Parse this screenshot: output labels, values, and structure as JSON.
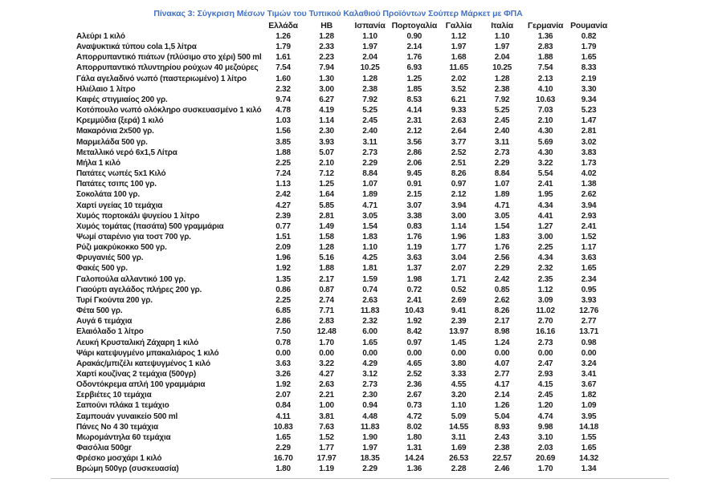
{
  "page": {
    "title": "Πίνακας 3: Σύγκριση Μέσων Τιμών του Τυπικού Καλαθιού Προϊόντων Σούπερ Μάρκετ με ΦΠΑ"
  },
  "colors": {
    "title_blue": "#4472c4",
    "text": "#1c1c1c",
    "rule_gray": "#c2c2c2"
  },
  "table": {
    "columns": [
      "Ελλάδα",
      "ΗΒ",
      "Ισπανία",
      "Πορτογαλία",
      "Γαλλία",
      "Ιταλία",
      "Γερμανία",
      "Ρουμανία"
    ],
    "rows": [
      {
        "label": "Αλεύρι 1 κιλό",
        "values": [
          "1.26",
          "1.28",
          "1.10",
          "0.90",
          "1.12",
          "1.10",
          "1.36",
          "0.82"
        ]
      },
      {
        "label": "Αναψυκτικά τύπου cola 1,5 λίτρα",
        "values": [
          "1.79",
          "2.33",
          "1.97",
          "2.14",
          "1.97",
          "1.97",
          "2.83",
          "1.79"
        ]
      },
      {
        "label": "Απορρυπαντικό πιάτων (πλύσιμο στο χέρι) 500 ml",
        "values": [
          "1.61",
          "2.23",
          "2.04",
          "1.76",
          "1.68",
          "2.04",
          "1.88",
          "1.65"
        ]
      },
      {
        "label": "Απορρυπαντικό πλυντηρίου ρούχων 40 μεζούρες",
        "values": [
          "7.54",
          "7.94",
          "10.25",
          "6.93",
          "11.65",
          "10.25",
          "7.54",
          "8.33"
        ]
      },
      {
        "label": "Γάλα αγελαδινό νωπό (παστεριωμένο) 1 λίτρο",
        "values": [
          "1.60",
          "1.30",
          "1.28",
          "1.25",
          "2.02",
          "1.28",
          "2.13",
          "2.19"
        ]
      },
      {
        "label": "Ηλιέλαιο 1 λίτρο",
        "values": [
          "2.32",
          "3.00",
          "2.38",
          "1.85",
          "3.52",
          "2.38",
          "4.10",
          "3.30"
        ]
      },
      {
        "label": "Καφές στιγμιαίος 200 γρ.",
        "values": [
          "9.74",
          "6.27",
          "7.92",
          "8.53",
          "6.21",
          "7.92",
          "10.63",
          "9.34"
        ]
      },
      {
        "label": "Κοτόπουλο νωπό ολόκληρο συσκευασμένο 1 κιλό",
        "values": [
          "4.78",
          "4.19",
          "5.25",
          "4.14",
          "9.33",
          "5.25",
          "7.03",
          "5.23"
        ]
      },
      {
        "label": "Κρεμμύδια (ξερά) 1 κιλό",
        "values": [
          "1.03",
          "1.14",
          "2.45",
          "2.31",
          "2.63",
          "2.45",
          "2.10",
          "1.47"
        ]
      },
      {
        "label": "Μακαρόνια 2x500 γρ.",
        "values": [
          "1.56",
          "2.30",
          "2.40",
          "2.12",
          "2.64",
          "2.40",
          "4.30",
          "2.81"
        ]
      },
      {
        "label": "Μαρμελάδα 500 γρ.",
        "values": [
          "3.85",
          "3.93",
          "3.11",
          "3.56",
          "3.77",
          "3.11",
          "5.69",
          "3.02"
        ]
      },
      {
        "label": "Μεταλλικό νερό 6x1,5 Λίτρα",
        "values": [
          "1.88",
          "5.07",
          "2.73",
          "2.86",
          "2.52",
          "2.73",
          "4.30",
          "3.83"
        ]
      },
      {
        "label": "Μήλα 1 κιλό",
        "values": [
          "2.25",
          "2.10",
          "2.29",
          "2.06",
          "2.51",
          "2.29",
          "3.22",
          "1.73"
        ]
      },
      {
        "label": "Πατάτες νωπές 5x1 Κιλό",
        "values": [
          "7.24",
          "7.12",
          "8.84",
          "9.45",
          "8.26",
          "8.84",
          "5.54",
          "4.02"
        ]
      },
      {
        "label": "Πατάτες τσιπς 100 γρ.",
        "values": [
          "1.13",
          "1.25",
          "1.07",
          "0.91",
          "0.97",
          "1.07",
          "2.41",
          "1.38"
        ]
      },
      {
        "label": "Σοκολάτα 100 γρ.",
        "values": [
          "2.42",
          "1.64",
          "1.89",
          "2.15",
          "2.12",
          "1.89",
          "1.95",
          "2.62"
        ]
      },
      {
        "label": "Χαρτί υγείας 10 τεμάχια",
        "values": [
          "4.27",
          "5.85",
          "4.71",
          "3.07",
          "3.94",
          "4.71",
          "4.34",
          "3.94"
        ]
      },
      {
        "label": "Χυμός πορτοκάλι ψυγείου 1 λίτρο",
        "values": [
          "2.39",
          "2.81",
          "3.05",
          "3.38",
          "3.00",
          "3.05",
          "4.41",
          "2.93"
        ]
      },
      {
        "label": "Χυμός τομάτας (πασάτα) 500 γραμμάρια",
        "values": [
          "0.77",
          "1.49",
          "1.54",
          "0.83",
          "1.14",
          "1.54",
          "1.27",
          "2.41"
        ]
      },
      {
        "label": "Ψωμί σταρένιο για τοστ 700 γρ.",
        "values": [
          "1.51",
          "1.58",
          "1.83",
          "1.76",
          "1.96",
          "1.83",
          "3.00",
          "1.52"
        ]
      },
      {
        "label": "Ρύζι μακρύκοκκο 500 γρ.",
        "values": [
          "2.09",
          "1.28",
          "1.10",
          "1.19",
          "1.77",
          "1.76",
          "2.25",
          "1.17"
        ]
      },
      {
        "label": "Φρυγανιές 500 γρ.",
        "values": [
          "1.96",
          "5.16",
          "4.25",
          "3.63",
          "3.04",
          "2.56",
          "4.34",
          "3.63"
        ]
      },
      {
        "label": "Φακές 500 γρ.",
        "values": [
          "1.92",
          "1.88",
          "1.81",
          "1.37",
          "2.07",
          "2.29",
          "2.32",
          "1.65"
        ]
      },
      {
        "label": "Γαλοπούλα αλλαντικό 100 γρ.",
        "values": [
          "1.35",
          "2.17",
          "1.59",
          "1.98",
          "1.71",
          "2.42",
          "2.35",
          "2.34"
        ]
      },
      {
        "label": "Γιαούρτι αγελάδος πλήρες 200 γρ.",
        "values": [
          "0.86",
          "0.87",
          "0.74",
          "0.72",
          "0.52",
          "0.85",
          "1.12",
          "0.95"
        ]
      },
      {
        "label": "Τυρί Γκούντα 200 γρ.",
        "values": [
          "2.25",
          "2.74",
          "2.63",
          "2.41",
          "2.69",
          "2.62",
          "3.09",
          "3.93"
        ]
      },
      {
        "label": "Φέτα 500 γρ.",
        "values": [
          "6.85",
          "7.71",
          "11.83",
          "10.43",
          "9.41",
          "8.26",
          "11.02",
          "12.76"
        ]
      },
      {
        "label": "Αυγά 6 τεμάχια",
        "values": [
          "2.86",
          "2.83",
          "2.32",
          "1.92",
          "2.39",
          "2.17",
          "2.70",
          "2.77"
        ]
      },
      {
        "label": "Ελαιόλαδο 1 λίτρο",
        "values": [
          "7.50",
          "12.48",
          "6.00",
          "8.42",
          "13.97",
          "8.98",
          "16.16",
          "13.71"
        ]
      },
      {
        "label": "Λευκή Κρυσταλική Ζάχαρη 1 κιλό",
        "values": [
          "0.78",
          "1.70",
          "1.65",
          "0.97",
          "1.45",
          "1.24",
          "2.73",
          "0.98"
        ]
      },
      {
        "label": "Ψάρι κατεψυγμένο μπακαλιάρος 1 κιλό",
        "values": [
          "0.00",
          "0.00",
          "0.00",
          "0.00",
          "0.00",
          "0.00",
          "0.00",
          "0.00"
        ]
      },
      {
        "label": "Αρακάς/μπιζέλι κατεψυγμένος 1 κιλό",
        "values": [
          "3.63",
          "3.22",
          "4.29",
          "4.65",
          "3.80",
          "4.07",
          "2.47",
          "3.24"
        ]
      },
      {
        "label": "Χαρτί κουζίνας 2 τεμάχια (500γρ)",
        "values": [
          "3.26",
          "4.27",
          "3.12",
          "2.52",
          "3.33",
          "2.77",
          "2.93",
          "3.41"
        ]
      },
      {
        "label": "Οδοντόκρεμα απλή 100 γραμμάρια",
        "values": [
          "1.92",
          "2.63",
          "2.73",
          "2.36",
          "4.55",
          "4.17",
          "4.15",
          "3.67"
        ]
      },
      {
        "label": "Σερβιέτες 10 τεμάχια",
        "values": [
          "2.07",
          "2.21",
          "2.30",
          "2.67",
          "3.20",
          "2.14",
          "2.45",
          "1.82"
        ]
      },
      {
        "label": "Σαπούνι πλάκα 1 τεμάχιο",
        "values": [
          "0.84",
          "1.00",
          "0.94",
          "0.73",
          "1.10",
          "1.26",
          "1.20",
          "1.09"
        ]
      },
      {
        "label": "Σαμπουάν γυναικείο 500 ml",
        "values": [
          "4.11",
          "3.81",
          "4.48",
          "4.72",
          "5.09",
          "5.04",
          "4.74",
          "3.95"
        ]
      },
      {
        "label": "Πάνες Νο 4 30 τεμάχια",
        "values": [
          "10.83",
          "7.63",
          "11.83",
          "8.02",
          "14.55",
          "8.93",
          "9.98",
          "14.18"
        ]
      },
      {
        "label": "Μωρομάντηλα 60 τεμάχια",
        "values": [
          "1.65",
          "1.52",
          "1.90",
          "1.80",
          "3.11",
          "2.43",
          "3.10",
          "1.55"
        ]
      },
      {
        "label": "Φασόλια 500gr",
        "values": [
          "2.29",
          "1.77",
          "1.97",
          "1.31",
          "1.69",
          "2.38",
          "2.03",
          "1.65"
        ]
      },
      {
        "label": "Φρέσκο μοσχάρι 1 κιλό",
        "values": [
          "16.70",
          "17.97",
          "18.35",
          "14.24",
          "26.53",
          "22.57",
          "20.69",
          "14.32"
        ]
      },
      {
        "label": "Βρώμη 500γρ (συσκευασία)",
        "values": [
          "1.80",
          "1.19",
          "2.29",
          "1.36",
          "2.28",
          "2.46",
          "1.70",
          "1.34"
        ]
      }
    ]
  }
}
